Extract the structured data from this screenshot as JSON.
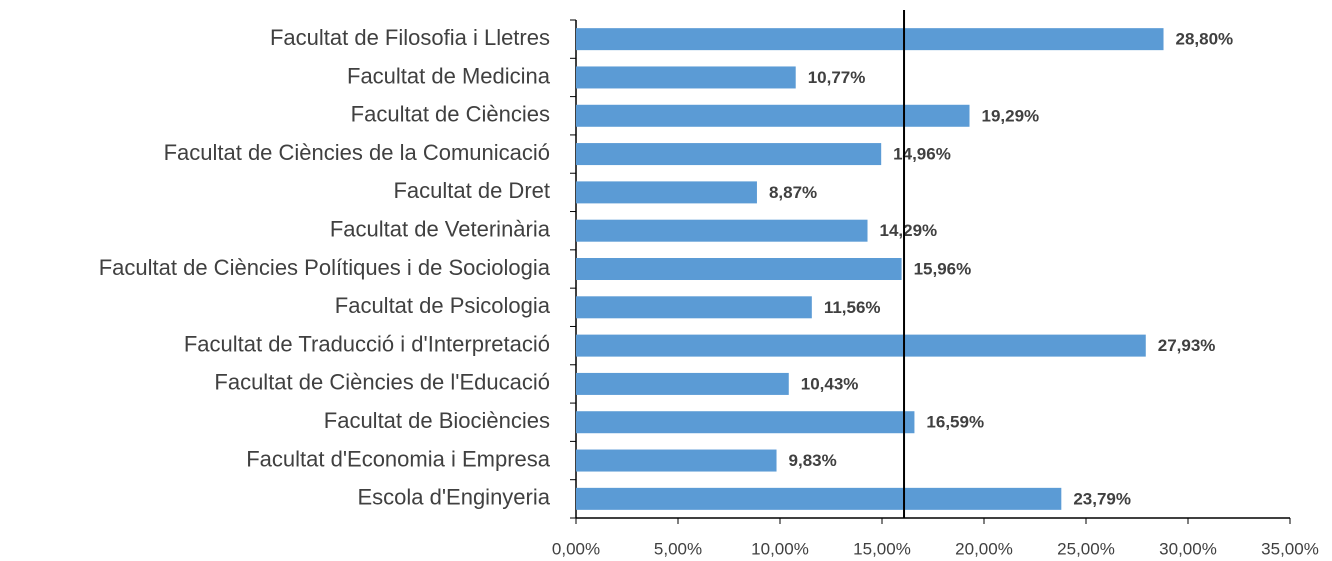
{
  "chart_data": {
    "type": "bar",
    "orientation": "horizontal",
    "categories": [
      "Facultat de Filosofia i Lletres",
      "Facultat de Medicina",
      "Facultat de Ciències",
      "Facultat de Ciències de la Comunicació",
      "Facultat de Dret",
      "Facultat de Veterinària",
      "Facultat de Ciències Polítiques i de Sociologia",
      "Facultat de Psicologia",
      "Facultat de Traducció i d'Interpretació",
      "Facultat de Ciències de l'Educació",
      "Facultat de Biociències",
      "Facultat d'Economia i Empresa",
      "Escola d'Enginyeria"
    ],
    "values": [
      28.8,
      10.77,
      19.29,
      14.96,
      8.87,
      14.29,
      15.96,
      11.56,
      27.93,
      10.43,
      16.59,
      9.83,
      23.79
    ],
    "value_labels": [
      "28,80%",
      "10,77%",
      "19,29%",
      "14,96%",
      "8,87%",
      "14,29%",
      "15,96%",
      "11,56%",
      "27,93%",
      "10,43%",
      "16,59%",
      "9,83%",
      "23,79%"
    ],
    "color": "#5b9bd5",
    "xlim": [
      0,
      35
    ],
    "xticks": [
      {
        "value": 0,
        "label": "0,00%"
      },
      {
        "value": 5,
        "label": "5,00%"
      },
      {
        "value": 10,
        "label": "10,00%"
      },
      {
        "value": 15,
        "label": "15,00%"
      },
      {
        "value": 20,
        "label": "20,00%"
      },
      {
        "value": 25,
        "label": "25,00%"
      },
      {
        "value": 30,
        "label": "30,00%"
      },
      {
        "value": 35,
        "label": "35,00%"
      }
    ],
    "reference_line": 16.08,
    "grid": false
  }
}
